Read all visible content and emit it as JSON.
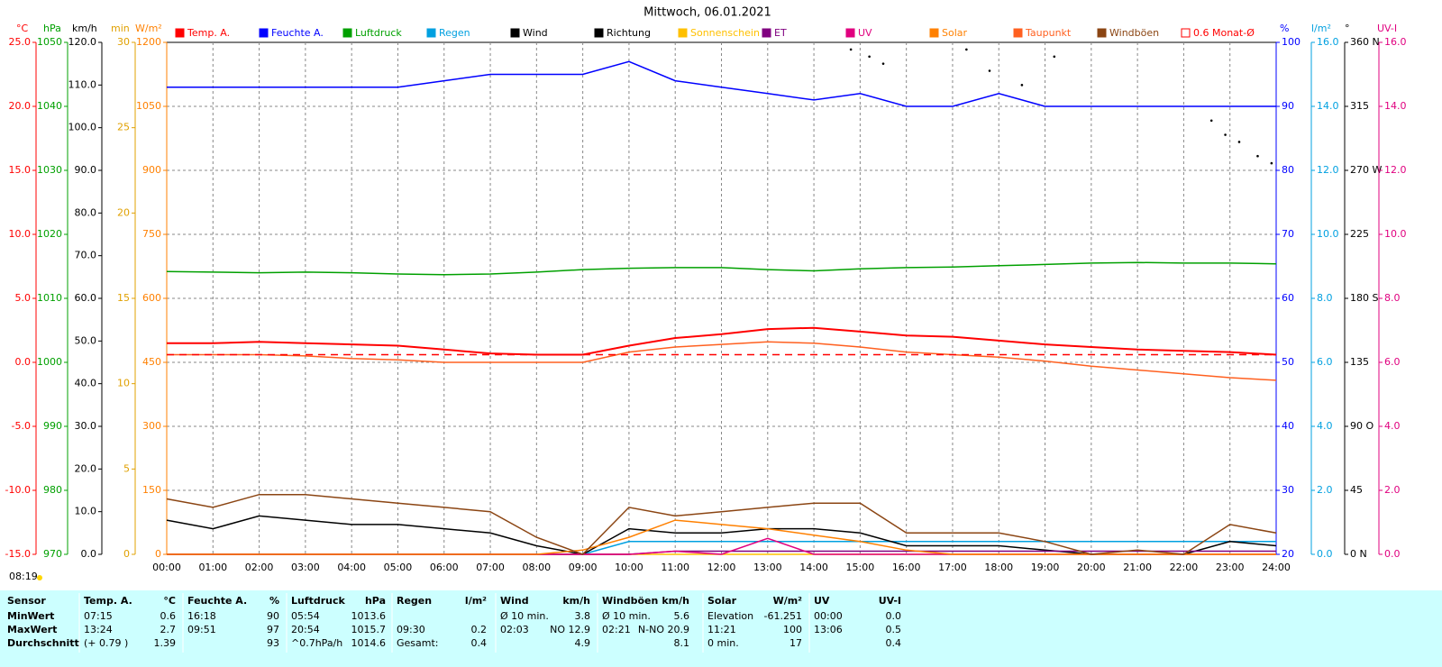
{
  "chart_data": {
    "type": "line",
    "title": "Mittwoch, 06.01.2021",
    "x": [
      0,
      1,
      2,
      3,
      4,
      5,
      6,
      7,
      8,
      9,
      10,
      11,
      12,
      13,
      14,
      15,
      16,
      17,
      18,
      19,
      20,
      21,
      22,
      23,
      24
    ],
    "xlim": [
      0,
      24
    ],
    "xticks": [
      {
        "value": 0,
        "label": "00:00"
      },
      {
        "value": 1,
        "label": "01:00"
      },
      {
        "value": 2,
        "label": "02:00"
      },
      {
        "value": 3,
        "label": "03:00"
      },
      {
        "value": 4,
        "label": "04:00"
      },
      {
        "value": 5,
        "label": "05:00"
      },
      {
        "value": 6,
        "label": "06:00"
      },
      {
        "value": 7,
        "label": "07:00"
      },
      {
        "value": 8,
        "label": "08:00"
      },
      {
        "value": 9,
        "label": "09:00"
      },
      {
        "value": 10,
        "label": "10:00"
      },
      {
        "value": 11,
        "label": "11:00"
      },
      {
        "value": 12,
        "label": "12:00"
      },
      {
        "value": 13,
        "label": "13:00"
      },
      {
        "value": 14,
        "label": "14:00"
      },
      {
        "value": 15,
        "label": "15:00"
      },
      {
        "value": 16,
        "label": "16:00"
      },
      {
        "value": 17,
        "label": "17:00"
      },
      {
        "value": 18,
        "label": "18:00"
      },
      {
        "value": 19,
        "label": "19:00"
      },
      {
        "value": 20,
        "label": "20:00"
      },
      {
        "value": 21,
        "label": "21:00"
      },
      {
        "value": 22,
        "label": "22:00"
      },
      {
        "value": 23,
        "label": "23:00"
      },
      {
        "value": 24,
        "label": "24:00"
      }
    ],
    "grid": true,
    "sunrise": "08:19",
    "axes": [
      {
        "label": "°C",
        "color": "#ff0000",
        "side": "left",
        "lim": [
          -15,
          25
        ],
        "ticks": [
          {
            "value": 25,
            "label": "25.0"
          },
          {
            "value": 20,
            "label": "20.0"
          },
          {
            "value": 15,
            "label": "15.0"
          },
          {
            "value": 10,
            "label": "10.0"
          },
          {
            "value": 5,
            "label": "5.0"
          },
          {
            "value": 0,
            "label": "0.0"
          },
          {
            "value": -5,
            "label": "-5.0"
          },
          {
            "value": -10,
            "label": "-10.0"
          },
          {
            "value": -15,
            "label": "-15.0"
          }
        ]
      },
      {
        "label": "hPa",
        "color": "#00a000",
        "side": "left",
        "lim": [
          970,
          1050
        ],
        "ticks": [
          1050,
          1040,
          1030,
          1020,
          1010,
          1000,
          990,
          980,
          970
        ]
      },
      {
        "label": "km/h",
        "color": "#000000",
        "side": "left",
        "lim": [
          0,
          120
        ],
        "ticks": [
          {
            "value": 120,
            "label": "120.0"
          },
          {
            "value": 110,
            "label": "110.0"
          },
          {
            "value": 100,
            "label": "100.0"
          },
          {
            "value": 90,
            "label": "90.0"
          },
          {
            "value": 80,
            "label": "80.0"
          },
          {
            "value": 70,
            "label": "70.0"
          },
          {
            "value": 60,
            "label": "60.0"
          },
          {
            "value": 50,
            "label": "50.0"
          },
          {
            "value": 40,
            "label": "40.0"
          },
          {
            "value": 30,
            "label": "30.0"
          },
          {
            "value": 20,
            "label": "20.0"
          },
          {
            "value": 10,
            "label": "10.0"
          },
          {
            "value": 0,
            "label": "0.0"
          }
        ]
      },
      {
        "label": "min",
        "color": "#e0a000",
        "side": "left",
        "lim": [
          0,
          30
        ],
        "ticks": [
          30,
          25,
          20,
          15,
          10,
          5,
          0
        ]
      },
      {
        "label": "W/m²",
        "color": "#ff8000",
        "side": "left",
        "lim": [
          0,
          1200
        ],
        "ticks": [
          1200,
          1050,
          900,
          750,
          600,
          450,
          300,
          150,
          0
        ]
      },
      {
        "label": "%",
        "color": "#0000ff",
        "side": "right",
        "lim": [
          20,
          100
        ],
        "ticks": [
          100,
          90,
          80,
          70,
          60,
          50,
          40,
          30,
          20
        ]
      },
      {
        "label": "l/m²",
        "color": "#00a0e0",
        "side": "right",
        "lim": [
          0,
          16
        ],
        "ticks": [
          {
            "value": 16,
            "label": "16.0"
          },
          {
            "value": 14,
            "label": "14.0"
          },
          {
            "value": 12,
            "label": "12.0"
          },
          {
            "value": 10,
            "label": "10.0"
          },
          {
            "value": 8,
            "label": "8.0"
          },
          {
            "value": 6,
            "label": "6.0"
          },
          {
            "value": 4,
            "label": "4.0"
          },
          {
            "value": 2,
            "label": "2.0"
          },
          {
            "value": 0,
            "label": "0.0"
          }
        ]
      },
      {
        "label": "°",
        "color": "#000000",
        "side": "right",
        "lim": [
          0,
          360
        ],
        "ticks": [
          {
            "value": 360,
            "label": "360 N"
          },
          {
            "value": 315,
            "label": "315"
          },
          {
            "value": 270,
            "label": "270 W"
          },
          {
            "value": 225,
            "label": "225"
          },
          {
            "value": 180,
            "label": "180 S"
          },
          {
            "value": 135,
            "label": "135"
          },
          {
            "value": 90,
            "label": "90 O"
          },
          {
            "value": 45,
            "label": "45"
          },
          {
            "value": 0,
            "label": "0 N"
          }
        ]
      },
      {
        "label": "UV-I",
        "color": "#e0007f",
        "side": "right",
        "lim": [
          0,
          16
        ],
        "ticks": [
          {
            "value": 16,
            "label": "16.0"
          },
          {
            "value": 14,
            "label": "14.0"
          },
          {
            "value": 12,
            "label": "12.0"
          },
          {
            "value": 10,
            "label": "10.0"
          },
          {
            "value": 8,
            "label": "8.0"
          },
          {
            "value": 6,
            "label": "6.0"
          },
          {
            "value": 4,
            "label": "4.0"
          },
          {
            "value": 2,
            "label": "2.0"
          },
          {
            "value": 0,
            "label": "0.0"
          }
        ]
      }
    ],
    "series": [
      {
        "name": "Temp. A.",
        "color": "#ff0000",
        "axis": "°C",
        "values": [
          1.5,
          1.5,
          1.6,
          1.5,
          1.4,
          1.3,
          1.0,
          0.7,
          0.6,
          0.6,
          1.3,
          1.9,
          2.2,
          2.6,
          2.7,
          2.4,
          2.1,
          2.0,
          1.7,
          1.4,
          1.2,
          1.0,
          0.9,
          0.8,
          0.6
        ]
      },
      {
        "name": "Feuchte A.",
        "color": "#0000ff",
        "axis": "%",
        "values": [
          93,
          93,
          93,
          93,
          93,
          93,
          94,
          95,
          95,
          95,
          97,
          94,
          93,
          92,
          91,
          92,
          90,
          90,
          92,
          90,
          90,
          90,
          90,
          90,
          90
        ]
      },
      {
        "name": "Luftdruck",
        "color": "#00a000",
        "axis": "hPa",
        "values": [
          1014.2,
          1014.1,
          1014.0,
          1014.1,
          1014.0,
          1013.8,
          1013.7,
          1013.8,
          1014.1,
          1014.5,
          1014.7,
          1014.8,
          1014.8,
          1014.5,
          1014.3,
          1014.6,
          1014.8,
          1014.9,
          1015.1,
          1015.3,
          1015.5,
          1015.6,
          1015.5,
          1015.5,
          1015.4
        ]
      },
      {
        "name": "Regen",
        "color": "#00a0e0",
        "axis": "l/m²",
        "values": [
          0,
          0,
          0,
          0,
          0,
          0,
          0,
          0,
          0,
          0,
          0.4,
          0.4,
          0.4,
          0.4,
          0.4,
          0.4,
          0.4,
          0.4,
          0.4,
          0.4,
          0.4,
          0.4,
          0.4,
          0.4,
          0.4
        ]
      },
      {
        "name": "Wind",
        "color": "#000000",
        "axis": "km/h",
        "values": [
          8,
          6,
          9,
          8,
          7,
          7,
          6,
          5,
          2,
          0,
          6,
          5,
          5,
          6,
          6,
          5,
          2,
          2,
          2,
          1,
          0,
          0,
          0,
          3,
          2
        ]
      },
      {
        "name": "Richtung",
        "color": "#000000",
        "axis": "°",
        "type": "scatter",
        "x": [
          14.8,
          15.2,
          15.5,
          17.3,
          17.8,
          18.5,
          19.2,
          22.6,
          22.9,
          23.2,
          23.6,
          23.9
        ],
        "values": [
          355,
          350,
          345,
          355,
          340,
          330,
          350,
          305,
          295,
          290,
          280,
          275
        ]
      },
      {
        "name": "Sonnenschein",
        "color": "#ffc000",
        "axis": "min",
        "values": [
          0,
          0,
          0,
          0,
          0,
          0,
          0,
          0,
          0,
          0,
          0,
          0,
          0,
          0,
          0,
          0,
          0,
          0,
          0,
          0,
          0,
          0,
          0,
          0,
          0
        ]
      },
      {
        "name": "ET",
        "color": "#800080",
        "axis": "l/m²",
        "values": [
          0,
          0,
          0,
          0,
          0,
          0,
          0,
          0,
          0,
          0,
          0,
          0.1,
          0.1,
          0.1,
          0.1,
          0.1,
          0.1,
          0.1,
          0.1,
          0.1,
          0.1,
          0.1,
          0.1,
          0.1,
          0.1
        ]
      },
      {
        "name": "UV",
        "color": "#e0007f",
        "axis": "UV-I",
        "values": [
          0,
          0,
          0,
          0,
          0,
          0,
          0,
          0,
          0,
          0,
          0,
          0.1,
          0,
          0.5,
          0,
          0,
          0,
          0,
          0,
          0,
          0,
          0,
          0,
          0,
          0
        ]
      },
      {
        "name": "Solar",
        "color": "#ff8000",
        "axis": "W/m²",
        "values": [
          0,
          0,
          0,
          0,
          0,
          0,
          0,
          0,
          0,
          10,
          40,
          80,
          70,
          60,
          45,
          30,
          10,
          0,
          0,
          0,
          0,
          0,
          0,
          0,
          0
        ]
      },
      {
        "name": "Taupunkt",
        "color": "#ff6020",
        "axis": "°C",
        "values": [
          0.6,
          0.6,
          0.6,
          0.5,
          0.3,
          0.2,
          0.0,
          0.0,
          0.0,
          0.0,
          0.8,
          1.2,
          1.4,
          1.6,
          1.5,
          1.2,
          0.8,
          0.6,
          0.4,
          0.1,
          -0.3,
          -0.6,
          -0.9,
          -1.2,
          -1.4
        ]
      },
      {
        "name": "Windböen",
        "color": "#8b4513",
        "axis": "km/h",
        "values": [
          13,
          11,
          14,
          14,
          13,
          12,
          11,
          10,
          4,
          0,
          11,
          9,
          10,
          11,
          12,
          12,
          5,
          5,
          5,
          3,
          0,
          1,
          0,
          7,
          5
        ]
      },
      {
        "name": "0.6 Monat-Ø",
        "color": "#ff0000",
        "axis": "°C",
        "dashed": true,
        "values": [
          0.6,
          0.6,
          0.6,
          0.6,
          0.6,
          0.6,
          0.6,
          0.6,
          0.6,
          0.6,
          0.6,
          0.6,
          0.6,
          0.6,
          0.6,
          0.6,
          0.6,
          0.6,
          0.6,
          0.6,
          0.6,
          0.6,
          0.6,
          0.6,
          0.6
        ]
      }
    ]
  },
  "table": {
    "header": [
      "Sensor",
      "Temp. A.",
      "°C",
      "Feuchte A.",
      "%",
      "Luftdruck",
      "hPa",
      "Regen",
      "l/m²",
      "Wind",
      "km/h",
      "Windböen",
      "km/h",
      "Solar",
      "W/m²",
      "UV",
      "UV-I"
    ],
    "rows": [
      [
        "MinWert",
        "07:15",
        "0.6",
        "16:18",
        "90",
        "05:54",
        "1013.6",
        null,
        null,
        "Ø 10 min.",
        "3.8",
        "Ø 10 min.",
        "5.6",
        "Elevation",
        "-61.251",
        "00:00",
        "0.0"
      ],
      [
        "MaxWert",
        "13:24",
        "2.7",
        "09:51",
        "97",
        "20:54",
        "1015.7",
        "09:30",
        "0.2",
        "02:03",
        "NO 12.9",
        "02:21",
        "N-NO 20.9",
        "11:21",
        "100",
        "13:06",
        "0.5"
      ],
      [
        "Durchschnitt",
        "(+ 0.79 )",
        "1.39",
        null,
        "93",
        "^0.7hPa/h",
        "1014.6",
        "Gesamt:",
        "0.4",
        null,
        "4.9",
        null,
        "8.1",
        "0 min.",
        "17",
        null,
        "0.4"
      ]
    ]
  }
}
